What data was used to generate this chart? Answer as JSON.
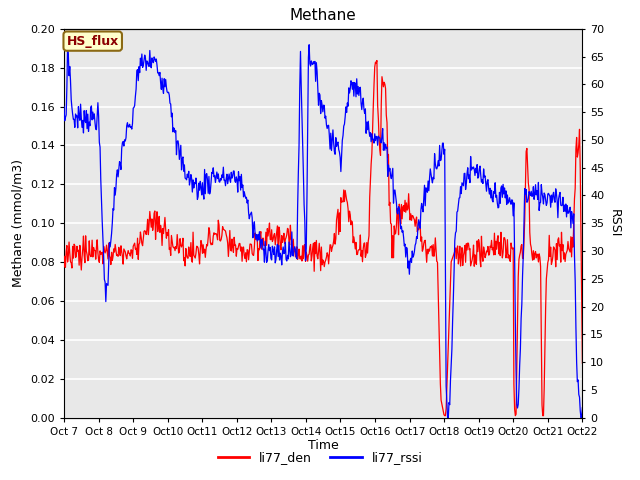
{
  "title": "Methane",
  "xlabel": "Time",
  "ylabel_left": "Methane (mmol/m3)",
  "ylabel_right": "RSSI",
  "legend_box_label": "HS_flux",
  "legend_entries": [
    "li77_den",
    "li77_rssi"
  ],
  "legend_colors": [
    "red",
    "blue"
  ],
  "ylim_left": [
    0.0,
    0.2
  ],
  "ylim_right": [
    0,
    70
  ],
  "yticks_left": [
    0.0,
    0.02,
    0.04,
    0.06,
    0.08,
    0.1,
    0.12,
    0.14,
    0.16,
    0.18,
    0.2
  ],
  "yticks_right": [
    0,
    5,
    10,
    15,
    20,
    25,
    30,
    35,
    40,
    45,
    50,
    55,
    60,
    65,
    70
  ],
  "xtick_labels": [
    "Oct 7",
    "Oct 8",
    "Oct 9",
    "Oct 10",
    "Oct 11",
    "Oct 12",
    "Oct 13",
    "Oct 14",
    "Oct 15",
    "Oct 16",
    "Oct 17",
    "Oct 18",
    "Oct 19",
    "Oct 20",
    "Oct 21",
    "Oct 22"
  ],
  "bg_color": "#e8e8e8",
  "fig_bg_color": "#ffffff",
  "grid_color": "#ffffff",
  "box_fill": "#ffffcc",
  "box_edge": "#8b6914",
  "box_text_color": "#8b0000",
  "rssi_scale": 0.002857,
  "den_base": 0.085,
  "n_per_day": 48,
  "n_days": 15
}
